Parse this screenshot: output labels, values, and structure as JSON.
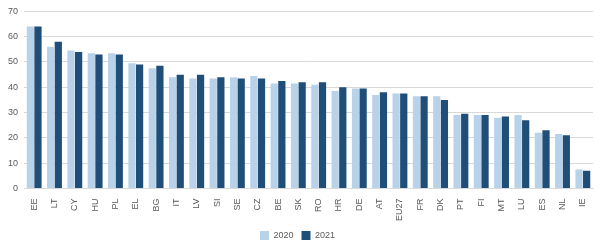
{
  "chart_data": {
    "type": "bar",
    "categories": [
      "EE",
      "LT",
      "CY",
      "HU",
      "PL",
      "EL",
      "BG",
      "IT",
      "LV",
      "SI",
      "SE",
      "CZ",
      "BE",
      "SK",
      "RO",
      "HR",
      "DE",
      "AT",
      "EU27",
      "FR",
      "DK",
      "PT",
      "FI",
      "MT",
      "LU",
      "ES",
      "NL",
      "IE"
    ],
    "series": [
      {
        "name": "2020",
        "color": "#b8d2ea",
        "values": [
          64,
          56,
          54.5,
          53.5,
          53.5,
          49.5,
          47.5,
          44,
          43.5,
          43.5,
          44,
          44.5,
          41.5,
          41.5,
          41,
          38.5,
          39.5,
          37,
          37.5,
          36.5,
          36.5,
          29,
          29,
          28,
          29,
          22,
          21.5,
          7.5
        ]
      },
      {
        "name": "2021",
        "color": "#1f4e79",
        "values": [
          64,
          58,
          54,
          53,
          53,
          49,
          48.5,
          45,
          45,
          44,
          43.5,
          43.5,
          42.5,
          42,
          42,
          40,
          39.5,
          38,
          37.5,
          36.5,
          35,
          29.5,
          29,
          28.5,
          27,
          23,
          21,
          7
        ]
      }
    ],
    "ylim": [
      0,
      70
    ],
    "yticks": [
      0,
      10,
      20,
      30,
      40,
      50,
      60,
      70
    ],
    "grid": true,
    "legend": "bottom"
  }
}
